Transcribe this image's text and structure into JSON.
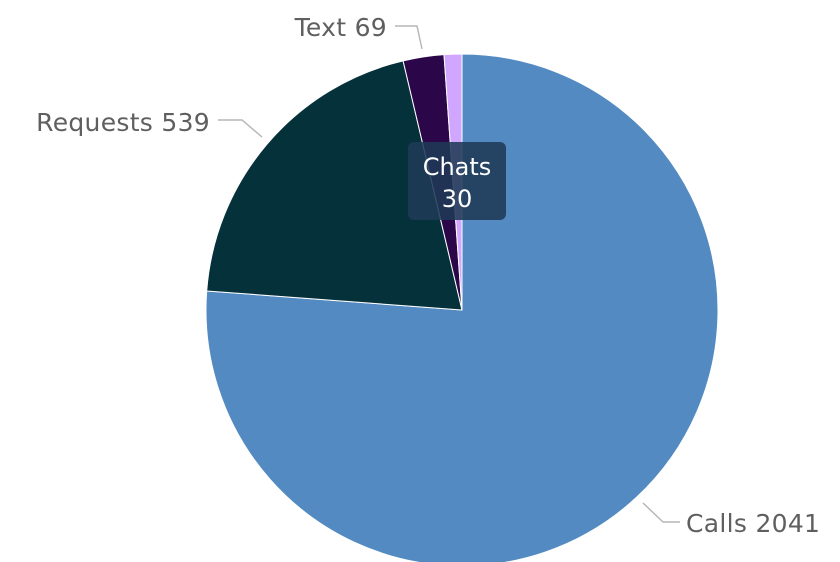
{
  "chart_data": {
    "type": "pie",
    "title": "",
    "start_angle_deg": 0,
    "direction": "clockwise",
    "slices": [
      {
        "label": "Calls",
        "value": 2041,
        "color": "#528ac1",
        "display": "Calls 2041"
      },
      {
        "label": "Requests",
        "value": 539,
        "color": "#05313b",
        "display": "Requests 539"
      },
      {
        "label": "Text",
        "value": 69,
        "color": "#2b0648",
        "display": "Text 69"
      },
      {
        "label": "Chats",
        "value": 30,
        "color": "#d1a6ff",
        "display": "Chats 30"
      }
    ],
    "tooltip": {
      "slice": "Chats",
      "label": "Chats",
      "value": "30"
    }
  }
}
